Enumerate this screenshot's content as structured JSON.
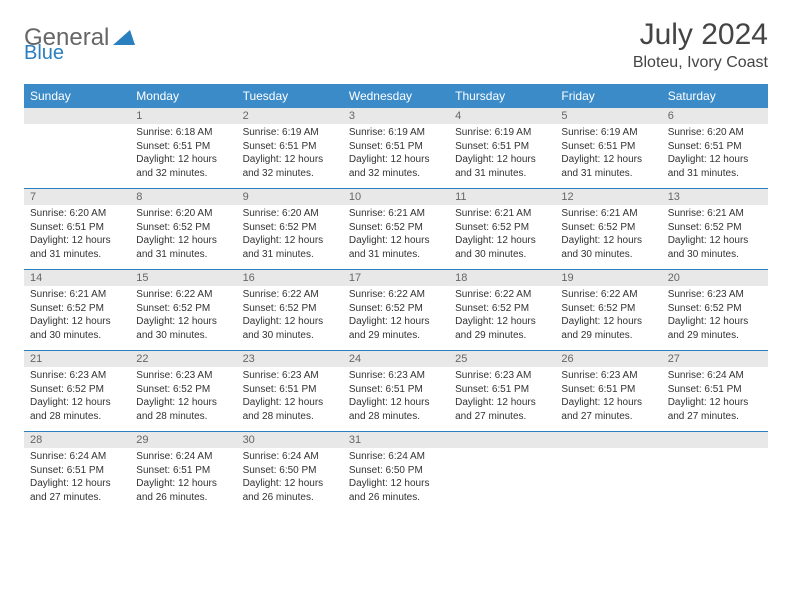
{
  "brand": {
    "part1": "General",
    "part2": "Blue"
  },
  "title": "July 2024",
  "location": "Bloteu, Ivory Coast",
  "colors": {
    "header_bg": "#3b8bc9",
    "rule": "#2a7fbf",
    "daynum_bg": "#e8e8e8",
    "text": "#333333"
  },
  "day_headers": [
    "Sunday",
    "Monday",
    "Tuesday",
    "Wednesday",
    "Thursday",
    "Friday",
    "Saturday"
  ],
  "weeks": [
    {
      "nums": [
        "",
        "1",
        "2",
        "3",
        "4",
        "5",
        "6"
      ],
      "cells": [
        null,
        {
          "sunrise": "Sunrise: 6:18 AM",
          "sunset": "Sunset: 6:51 PM",
          "day": "Daylight: 12 hours and 32 minutes."
        },
        {
          "sunrise": "Sunrise: 6:19 AM",
          "sunset": "Sunset: 6:51 PM",
          "day": "Daylight: 12 hours and 32 minutes."
        },
        {
          "sunrise": "Sunrise: 6:19 AM",
          "sunset": "Sunset: 6:51 PM",
          "day": "Daylight: 12 hours and 32 minutes."
        },
        {
          "sunrise": "Sunrise: 6:19 AM",
          "sunset": "Sunset: 6:51 PM",
          "day": "Daylight: 12 hours and 31 minutes."
        },
        {
          "sunrise": "Sunrise: 6:19 AM",
          "sunset": "Sunset: 6:51 PM",
          "day": "Daylight: 12 hours and 31 minutes."
        },
        {
          "sunrise": "Sunrise: 6:20 AM",
          "sunset": "Sunset: 6:51 PM",
          "day": "Daylight: 12 hours and 31 minutes."
        }
      ]
    },
    {
      "nums": [
        "7",
        "8",
        "9",
        "10",
        "11",
        "12",
        "13"
      ],
      "cells": [
        {
          "sunrise": "Sunrise: 6:20 AM",
          "sunset": "Sunset: 6:51 PM",
          "day": "Daylight: 12 hours and 31 minutes."
        },
        {
          "sunrise": "Sunrise: 6:20 AM",
          "sunset": "Sunset: 6:52 PM",
          "day": "Daylight: 12 hours and 31 minutes."
        },
        {
          "sunrise": "Sunrise: 6:20 AM",
          "sunset": "Sunset: 6:52 PM",
          "day": "Daylight: 12 hours and 31 minutes."
        },
        {
          "sunrise": "Sunrise: 6:21 AM",
          "sunset": "Sunset: 6:52 PM",
          "day": "Daylight: 12 hours and 31 minutes."
        },
        {
          "sunrise": "Sunrise: 6:21 AM",
          "sunset": "Sunset: 6:52 PM",
          "day": "Daylight: 12 hours and 30 minutes."
        },
        {
          "sunrise": "Sunrise: 6:21 AM",
          "sunset": "Sunset: 6:52 PM",
          "day": "Daylight: 12 hours and 30 minutes."
        },
        {
          "sunrise": "Sunrise: 6:21 AM",
          "sunset": "Sunset: 6:52 PM",
          "day": "Daylight: 12 hours and 30 minutes."
        }
      ]
    },
    {
      "nums": [
        "14",
        "15",
        "16",
        "17",
        "18",
        "19",
        "20"
      ],
      "cells": [
        {
          "sunrise": "Sunrise: 6:21 AM",
          "sunset": "Sunset: 6:52 PM",
          "day": "Daylight: 12 hours and 30 minutes."
        },
        {
          "sunrise": "Sunrise: 6:22 AM",
          "sunset": "Sunset: 6:52 PM",
          "day": "Daylight: 12 hours and 30 minutes."
        },
        {
          "sunrise": "Sunrise: 6:22 AM",
          "sunset": "Sunset: 6:52 PM",
          "day": "Daylight: 12 hours and 30 minutes."
        },
        {
          "sunrise": "Sunrise: 6:22 AM",
          "sunset": "Sunset: 6:52 PM",
          "day": "Daylight: 12 hours and 29 minutes."
        },
        {
          "sunrise": "Sunrise: 6:22 AM",
          "sunset": "Sunset: 6:52 PM",
          "day": "Daylight: 12 hours and 29 minutes."
        },
        {
          "sunrise": "Sunrise: 6:22 AM",
          "sunset": "Sunset: 6:52 PM",
          "day": "Daylight: 12 hours and 29 minutes."
        },
        {
          "sunrise": "Sunrise: 6:23 AM",
          "sunset": "Sunset: 6:52 PM",
          "day": "Daylight: 12 hours and 29 minutes."
        }
      ]
    },
    {
      "nums": [
        "21",
        "22",
        "23",
        "24",
        "25",
        "26",
        "27"
      ],
      "cells": [
        {
          "sunrise": "Sunrise: 6:23 AM",
          "sunset": "Sunset: 6:52 PM",
          "day": "Daylight: 12 hours and 28 minutes."
        },
        {
          "sunrise": "Sunrise: 6:23 AM",
          "sunset": "Sunset: 6:52 PM",
          "day": "Daylight: 12 hours and 28 minutes."
        },
        {
          "sunrise": "Sunrise: 6:23 AM",
          "sunset": "Sunset: 6:51 PM",
          "day": "Daylight: 12 hours and 28 minutes."
        },
        {
          "sunrise": "Sunrise: 6:23 AM",
          "sunset": "Sunset: 6:51 PM",
          "day": "Daylight: 12 hours and 28 minutes."
        },
        {
          "sunrise": "Sunrise: 6:23 AM",
          "sunset": "Sunset: 6:51 PM",
          "day": "Daylight: 12 hours and 27 minutes."
        },
        {
          "sunrise": "Sunrise: 6:23 AM",
          "sunset": "Sunset: 6:51 PM",
          "day": "Daylight: 12 hours and 27 minutes."
        },
        {
          "sunrise": "Sunrise: 6:24 AM",
          "sunset": "Sunset: 6:51 PM",
          "day": "Daylight: 12 hours and 27 minutes."
        }
      ]
    },
    {
      "nums": [
        "28",
        "29",
        "30",
        "31",
        "",
        "",
        ""
      ],
      "cells": [
        {
          "sunrise": "Sunrise: 6:24 AM",
          "sunset": "Sunset: 6:51 PM",
          "day": "Daylight: 12 hours and 27 minutes."
        },
        {
          "sunrise": "Sunrise: 6:24 AM",
          "sunset": "Sunset: 6:51 PM",
          "day": "Daylight: 12 hours and 26 minutes."
        },
        {
          "sunrise": "Sunrise: 6:24 AM",
          "sunset": "Sunset: 6:50 PM",
          "day": "Daylight: 12 hours and 26 minutes."
        },
        {
          "sunrise": "Sunrise: 6:24 AM",
          "sunset": "Sunset: 6:50 PM",
          "day": "Daylight: 12 hours and 26 minutes."
        },
        null,
        null,
        null
      ]
    }
  ]
}
